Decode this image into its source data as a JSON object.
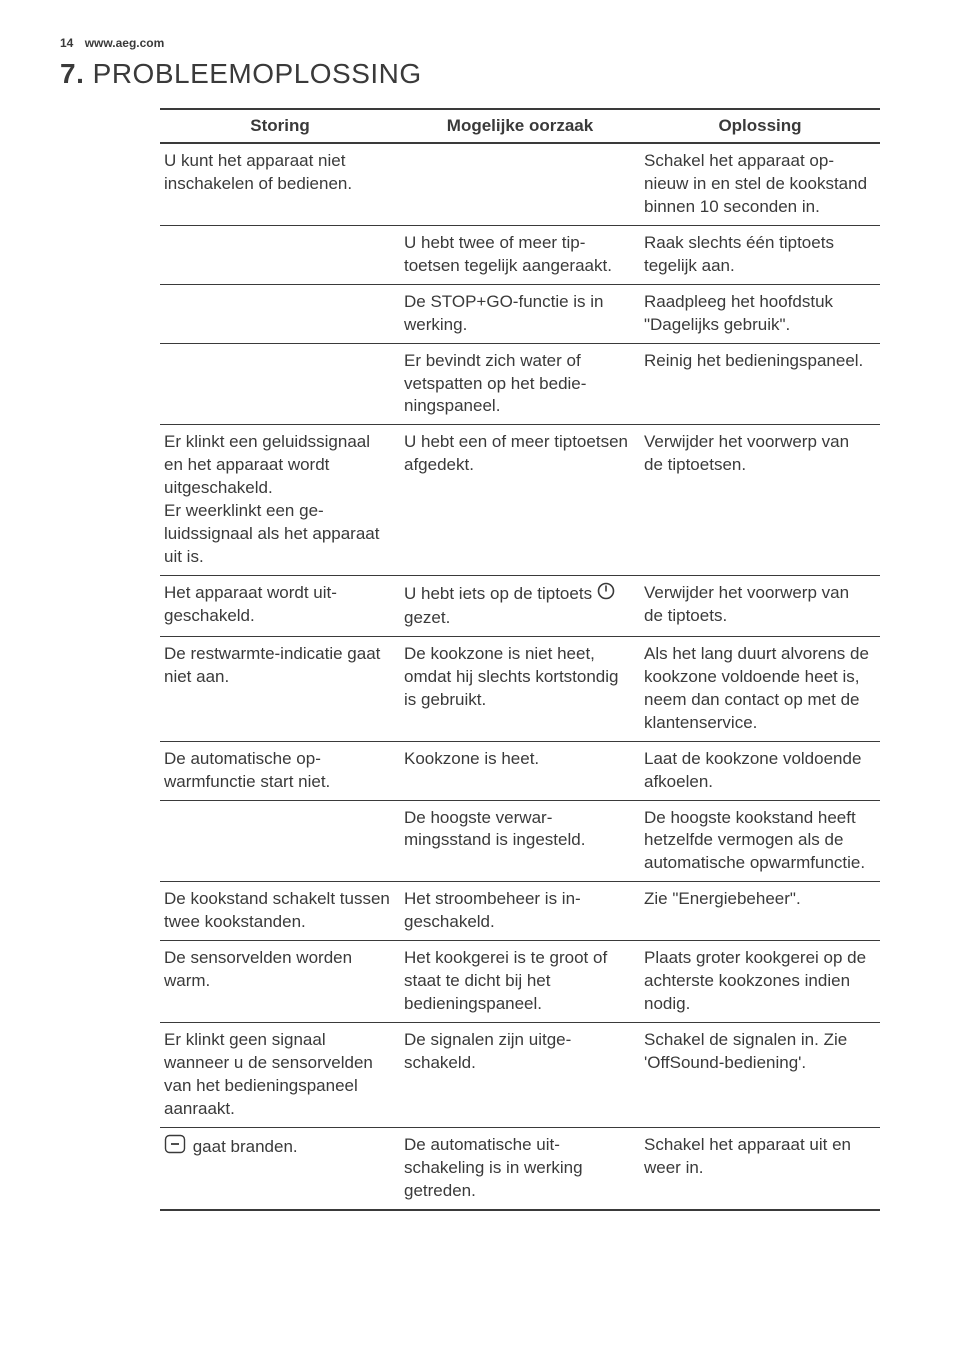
{
  "header": {
    "page_number": "14",
    "url": "www.aeg.com"
  },
  "section": {
    "number": "7.",
    "title": "PROBLEEMOPLOSSING"
  },
  "table": {
    "columns": [
      "Storing",
      "Mogelijke oorzaak",
      "Oplossing"
    ],
    "rows": [
      {
        "storing": "U kunt het apparaat niet inschakelen of bedienen.",
        "oorzaak": "",
        "oplossing": "Schakel het apparaat op­nieuw in en stel de kook­stand binnen 10 secon­den in."
      },
      {
        "storing": "",
        "oorzaak": "U hebt twee of meer tip­toetsen tegelijk aange­raakt.",
        "oplossing": "Raak slechts één tiptoets tegelijk aan."
      },
      {
        "storing": "",
        "oorzaak": "De STOP+GO-functie is in werking.",
        "oplossing": "Raadpleeg het hoofd­stuk \"Dagelijks gebruik\"."
      },
      {
        "storing": "",
        "oorzaak": "Er bevindt zich water of vetspatten op het bedie­ningspaneel.",
        "oplossing": "Reinig het bedieningspa­neel."
      },
      {
        "storing": "Er klinkt een geluidssig­naal en het apparaat wordt uitgeschakeld.\nEr weerklinkt een ge­luidssignaal als het appa­raat uit is.",
        "oorzaak": "U hebt een of meer tip­toetsen afgedekt.",
        "oplossing": "Verwijder het voorwerp van de tiptoetsen."
      },
      {
        "storing": "Het apparaat wordt uit­geschakeld.",
        "oorzaak_pre": "U hebt iets op de tip­toets ",
        "oorzaak_icon": "power",
        "oorzaak_post": " gezet.",
        "oplossing": "Verwijder het voorwerp van de tiptoets."
      },
      {
        "storing": "De restwarmte-indicatie gaat niet aan.",
        "oorzaak": "De kookzone is niet heet, omdat hij slechts kortstondig is gebruikt.",
        "oplossing": "Als het lang duurt alvo­rens de kookzone vol­doende heet is, neem dan contact op met de klantenservice."
      },
      {
        "storing": "De automatische op­warmfunctie start niet.",
        "oorzaak": "Kookzone is heet.",
        "oplossing": "Laat de kookzone vol­doende afkoelen."
      },
      {
        "storing": "",
        "oorzaak": "De hoogste verwar­mingsstand is ingesteld.",
        "oplossing": "De hoogste kookstand heeft hetzelfde vermo­gen als de automatische opwarmfunctie."
      },
      {
        "storing": "De kookstand schakelt tussen twee kookstan­den.",
        "oorzaak": "Het stroombeheer is in­geschakeld.",
        "oplossing": "Zie \"Energiebeheer\"."
      },
      {
        "storing": "De sensorvelden worden warm.",
        "oorzaak": "Het kookgerei is te groot of staat te dicht bij het bedieningspaneel.",
        "oplossing": "Plaats groter kookgerei op de achterste kookzo­nes indien nodig."
      },
      {
        "storing": "Er klinkt geen signaal wanneer u de sensorvel­den van het bedienings­paneel aanraakt.",
        "oorzaak": "De signalen zijn uitge­schakeld.",
        "oplossing": "Schakel de signalen in. Zie 'OffSound-bedie­ning'."
      },
      {
        "storing_icon": "dash",
        "storing_post": " gaat branden.",
        "oorzaak": "De automatische uit­schakeling is in werking getreden.",
        "oplossing": "Schakel het apparaat uit en weer in."
      }
    ]
  },
  "style": {
    "text_color": "#3a3a3a",
    "border_color": "#3a3a3a",
    "background": "#ffffff",
    "body_fontsize": 17,
    "header_fontsize": 12,
    "title_fontsize": 28
  }
}
